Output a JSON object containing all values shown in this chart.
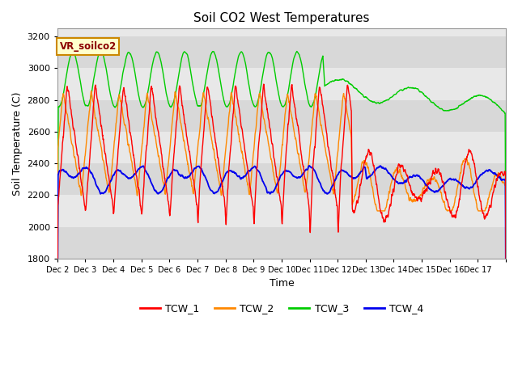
{
  "title": "Soil CO2 West Temperatures",
  "xlabel": "Time",
  "ylabel": "Soil Temperature (C)",
  "ylim": [
    1800,
    3250
  ],
  "yticks": [
    1800,
    2000,
    2200,
    2400,
    2600,
    2800,
    3000,
    3200
  ],
  "x_labels": [
    "Dec 2",
    "Dec 3",
    "Dec 4",
    "Dec 5",
    "Dec 6",
    "Dec 7",
    "Dec 8",
    "Dec 9",
    "Dec 10",
    "Dec 11",
    "Dec 12",
    "Dec 13",
    "Dec 14",
    "Dec 15",
    "Dec 16",
    "Dec 17"
  ],
  "vr_label": "VR_soilco2",
  "series_colors": {
    "TCW_1": "#ff0000",
    "TCW_2": "#ff8800",
    "TCW_3": "#00cc00",
    "TCW_4": "#0000ee"
  },
  "legend_entries": [
    "TCW_1",
    "TCW_2",
    "TCW_3",
    "TCW_4"
  ],
  "band_color_light": "#e8e8e8",
  "band_color_white": "#f8f8f8",
  "band_edges": [
    1800,
    2000,
    2200,
    2400,
    2600,
    2800,
    3000,
    3200
  ],
  "background_color": "#ffffff",
  "plot_bg": "#e8e8e8"
}
